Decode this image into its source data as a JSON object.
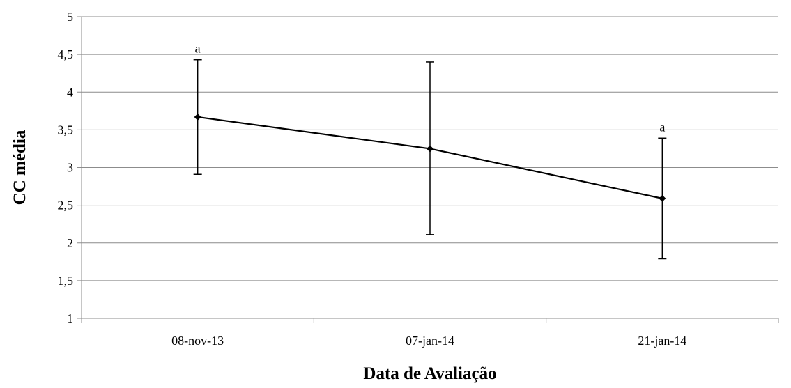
{
  "chart_data": {
    "type": "line",
    "title": "",
    "xlabel": "Data de Avaliação",
    "ylabel": "CC média",
    "ylim": [
      1,
      5
    ],
    "ytick_step": 0.5,
    "yticks": [
      "1",
      "1,5",
      "2",
      "2,5",
      "3",
      "3,5",
      "4",
      "4,5",
      "5"
    ],
    "categories": [
      "08-nov-13",
      "07-jan-14",
      "21-jan-14"
    ],
    "series": [
      {
        "values": [
          3.67,
          3.25,
          2.59
        ],
        "error_low": [
          2.91,
          2.11,
          1.79
        ],
        "error_high": [
          4.43,
          4.4,
          3.39
        ],
        "annotations": [
          "a",
          "",
          "a"
        ],
        "color": "#000000"
      }
    ],
    "grid": true,
    "legend": "none"
  }
}
